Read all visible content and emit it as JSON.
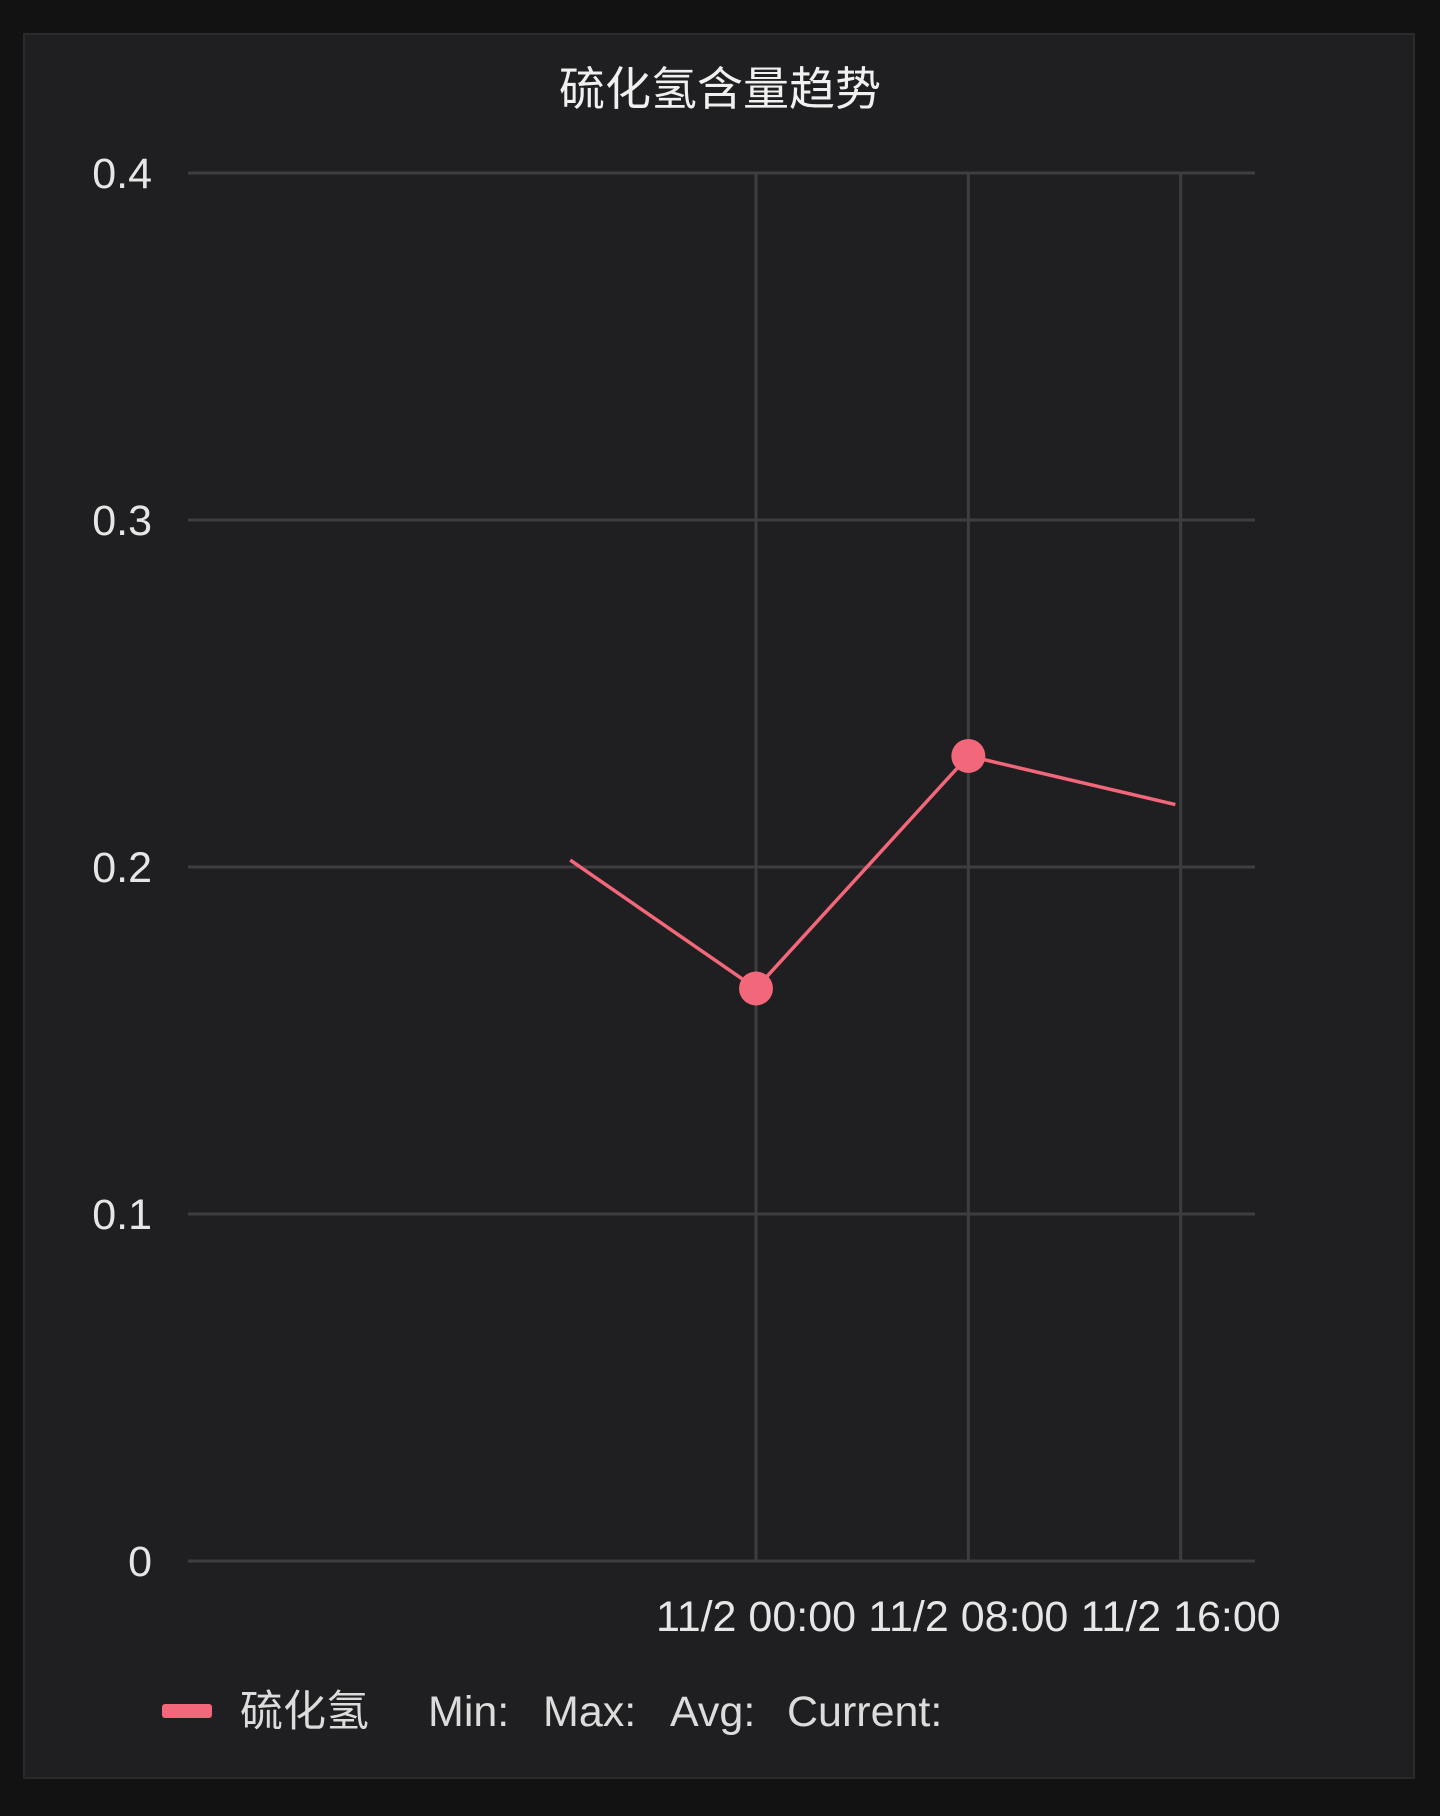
{
  "chart_data": {
    "type": "line",
    "title": "硫化氢含量趋势",
    "xlabel": "",
    "ylabel": "",
    "ylim": [
      0,
      0.4
    ],
    "yticks": [
      "0",
      "0.1",
      "0.2",
      "0.3",
      "0.4"
    ],
    "ytick_values": [
      0,
      0.1,
      0.2,
      0.3,
      0.4
    ],
    "xlim_hours": [
      -21.4,
      18.8
    ],
    "xticks": [
      "11/2 00:00",
      "11/2 08:00",
      "11/2 16:00"
    ],
    "xtick_hours": [
      0,
      8,
      16
    ],
    "grid": true,
    "legend_position": "bottom-left",
    "series": [
      {
        "name": "硫化氢",
        "color": "#f2677a",
        "x": [
          "11/1 17:00",
          "11/2 00:00",
          "11/2 08:00",
          "11/2 16:00"
        ],
        "x_hours": [
          -7,
          0,
          8,
          15.8
        ],
        "values": [
          0.202,
          0.165,
          0.232,
          0.218
        ],
        "markers": [
          false,
          true,
          true,
          false
        ]
      }
    ]
  },
  "legend": {
    "series_name": "硫化氢",
    "min_label": "Min:",
    "max_label": "Max:",
    "avg_label": "Avg:",
    "current_label": "Current:"
  },
  "colors": {
    "background": "#121212",
    "panel": "#1f1e20",
    "grid": "#3e3e40",
    "series": "#f2677a"
  }
}
